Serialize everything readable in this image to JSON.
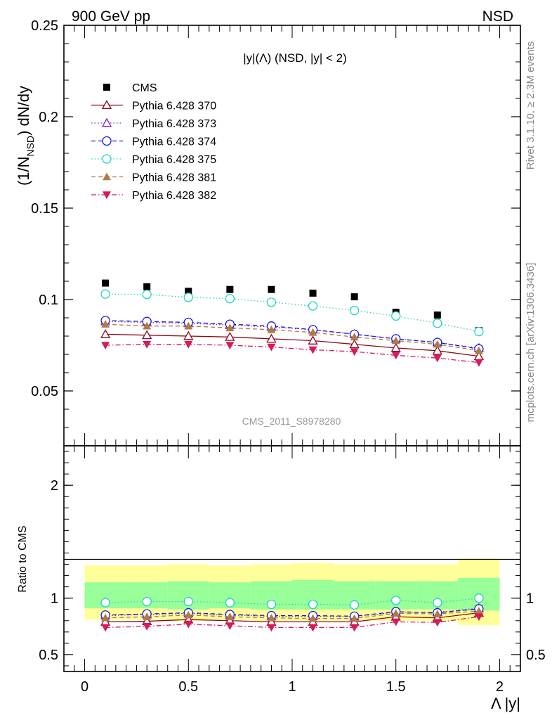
{
  "header": {
    "left": "900 GeV pp",
    "right": "NSD"
  },
  "side_text": {
    "top": "Rivet 3.1.10, ≥ 2.3M events",
    "bottom": "mcplots.cern.ch [arXiv:1306.3436]"
  },
  "watermark": "CMS_2011_S8978280",
  "chart_data": [
    {
      "type": "scatter",
      "panel": "main",
      "title": "|y|(Λ) (NSD, |y| < 2)",
      "ylabel": "(1/N_NSD) dN/dy",
      "xlabel": "Λ |y|",
      "xlim": [
        -0.1,
        2.1
      ],
      "ylim": [
        0.02,
        0.25
      ],
      "yticks": [
        {
          "v": 0.05,
          "label": "0.05"
        },
        {
          "v": 0.1,
          "label": "0.1"
        },
        {
          "v": 0.15,
          "label": "0.15"
        },
        {
          "v": 0.2,
          "label": "0.2"
        },
        {
          "v": 0.25,
          "label": "0.25"
        }
      ],
      "legend_position": "top-left",
      "x": [
        0.1,
        0.3,
        0.5,
        0.7,
        0.9,
        1.1,
        1.3,
        1.5,
        1.7,
        1.9
      ],
      "series": [
        {
          "name": "CMS",
          "color": "#000000",
          "marker": "square",
          "line": "none",
          "values": [
            0.109,
            0.107,
            0.1045,
            0.1055,
            0.1055,
            0.1035,
            0.1015,
            0.093,
            0.0915,
            0.083
          ]
        },
        {
          "name": "Pythia 6.428 370",
          "color": "#8b0a1a",
          "marker": "triangle-open",
          "line": "solid",
          "values": [
            0.081,
            0.0805,
            0.08,
            0.0795,
            0.0785,
            0.0775,
            0.0755,
            0.0735,
            0.072,
            0.069
          ]
        },
        {
          "name": "Pythia 6.428 373",
          "color": "#7a1fd0",
          "marker": "triangle-open",
          "line": "dotted",
          "values": [
            0.088,
            0.0875,
            0.087,
            0.086,
            0.085,
            0.0835,
            0.081,
            0.0785,
            0.0765,
            0.0735
          ]
        },
        {
          "name": "Pythia 6.428 374",
          "color": "#1a1ad6",
          "marker": "circle-open",
          "line": "dashed",
          "values": [
            0.0885,
            0.088,
            0.0875,
            0.0865,
            0.0855,
            0.0835,
            0.081,
            0.0785,
            0.0765,
            0.073
          ]
        },
        {
          "name": "Pythia 6.428 375",
          "color": "#1ed4c0",
          "marker": "circle-open",
          "line": "dotted",
          "values": [
            0.103,
            0.1028,
            0.1012,
            0.1005,
            0.0985,
            0.0965,
            0.094,
            0.091,
            0.087,
            0.0825
          ]
        },
        {
          "name": "Pythia 6.428 381",
          "color": "#b07a48",
          "marker": "triangle",
          "line": "dashed",
          "values": [
            0.0865,
            0.0855,
            0.0855,
            0.0845,
            0.0835,
            0.082,
            0.0795,
            0.0775,
            0.0755,
            0.072
          ]
        },
        {
          "name": "Pythia 6.428 382",
          "color": "#d61a5a",
          "marker": "triangle-down",
          "line": "dashdot",
          "values": [
            0.075,
            0.0755,
            0.0755,
            0.075,
            0.074,
            0.0725,
            0.0715,
            0.0695,
            0.068,
            0.0655
          ]
        }
      ]
    },
    {
      "type": "scatter",
      "panel": "ratio",
      "ylabel": "Ratio to CMS",
      "xlabel": "Λ |y|",
      "xlim": [
        -0.1,
        2.1
      ],
      "ylim": [
        0.35,
        2.35
      ],
      "yticks": [
        {
          "v": 0.5,
          "label": "0.5"
        },
        {
          "v": 1,
          "label": "1"
        },
        {
          "v": 2,
          "label": "2"
        }
      ],
      "xticks": [
        {
          "v": 0,
          "label": "0"
        },
        {
          "v": 0.5,
          "label": "0.5"
        },
        {
          "v": 1,
          "label": "1"
        },
        {
          "v": 1.5,
          "label": "1.5"
        },
        {
          "v": 2,
          "label": "2"
        }
      ],
      "bins": [
        [
          0.0,
          0.2
        ],
        [
          0.2,
          0.4
        ],
        [
          0.4,
          0.6
        ],
        [
          0.6,
          0.8
        ],
        [
          0.8,
          1.0
        ],
        [
          1.0,
          1.2
        ],
        [
          1.2,
          1.4
        ],
        [
          1.4,
          1.6
        ],
        [
          1.6,
          1.8
        ],
        [
          1.8,
          2.0
        ]
      ],
      "band_outer": [
        [
          0.81,
          1.29
        ],
        [
          0.81,
          1.29
        ],
        [
          0.8,
          1.3
        ],
        [
          0.81,
          1.29
        ],
        [
          0.8,
          1.3
        ],
        [
          0.8,
          1.31
        ],
        [
          0.8,
          1.3
        ],
        [
          0.8,
          1.3
        ],
        [
          0.8,
          1.3
        ],
        [
          0.76,
          1.35
        ]
      ],
      "band_inner": [
        [
          0.91,
          1.14
        ],
        [
          0.91,
          1.14
        ],
        [
          0.9,
          1.15
        ],
        [
          0.91,
          1.14
        ],
        [
          0.9,
          1.15
        ],
        [
          0.9,
          1.16
        ],
        [
          0.9,
          1.15
        ],
        [
          0.9,
          1.15
        ],
        [
          0.9,
          1.15
        ],
        [
          0.89,
          1.18
        ]
      ],
      "x": [
        0.1,
        0.3,
        0.5,
        0.7,
        0.9,
        1.1,
        1.3,
        1.5,
        1.7,
        1.9
      ],
      "series": [
        {
          "name": "Pythia 6.428 370",
          "color": "#8b0a1a",
          "marker": "triangle-open",
          "line": "solid",
          "values": [
            0.79,
            0.795,
            0.81,
            0.8,
            0.79,
            0.79,
            0.79,
            0.835,
            0.825,
            0.87
          ]
        },
        {
          "name": "Pythia 6.428 373",
          "color": "#7a1fd0",
          "marker": "triangle-open",
          "line": "dotted",
          "values": [
            0.845,
            0.855,
            0.865,
            0.85,
            0.84,
            0.84,
            0.835,
            0.875,
            0.875,
            0.91
          ]
        },
        {
          "name": "Pythia 6.428 374",
          "color": "#1a1ad6",
          "marker": "circle-open",
          "line": "dashed",
          "values": [
            0.85,
            0.86,
            0.87,
            0.855,
            0.845,
            0.845,
            0.84,
            0.88,
            0.87,
            0.905
          ]
        },
        {
          "name": "Pythia 6.428 375",
          "color": "#1ed4c0",
          "marker": "circle-open",
          "line": "dotted",
          "values": [
            0.96,
            0.97,
            0.97,
            0.96,
            0.945,
            0.945,
            0.94,
            0.98,
            0.96,
            1.0
          ]
        },
        {
          "name": "Pythia 6.428 381",
          "color": "#b07a48",
          "marker": "triangle",
          "line": "dashed",
          "values": [
            0.825,
            0.835,
            0.85,
            0.835,
            0.825,
            0.82,
            0.82,
            0.865,
            0.86,
            0.885
          ]
        },
        {
          "name": "Pythia 6.428 382",
          "color": "#d61a5a",
          "marker": "triangle-down",
          "line": "dashdot",
          "values": [
            0.74,
            0.75,
            0.77,
            0.755,
            0.74,
            0.74,
            0.74,
            0.79,
            0.785,
            0.835
          ]
        }
      ]
    }
  ]
}
